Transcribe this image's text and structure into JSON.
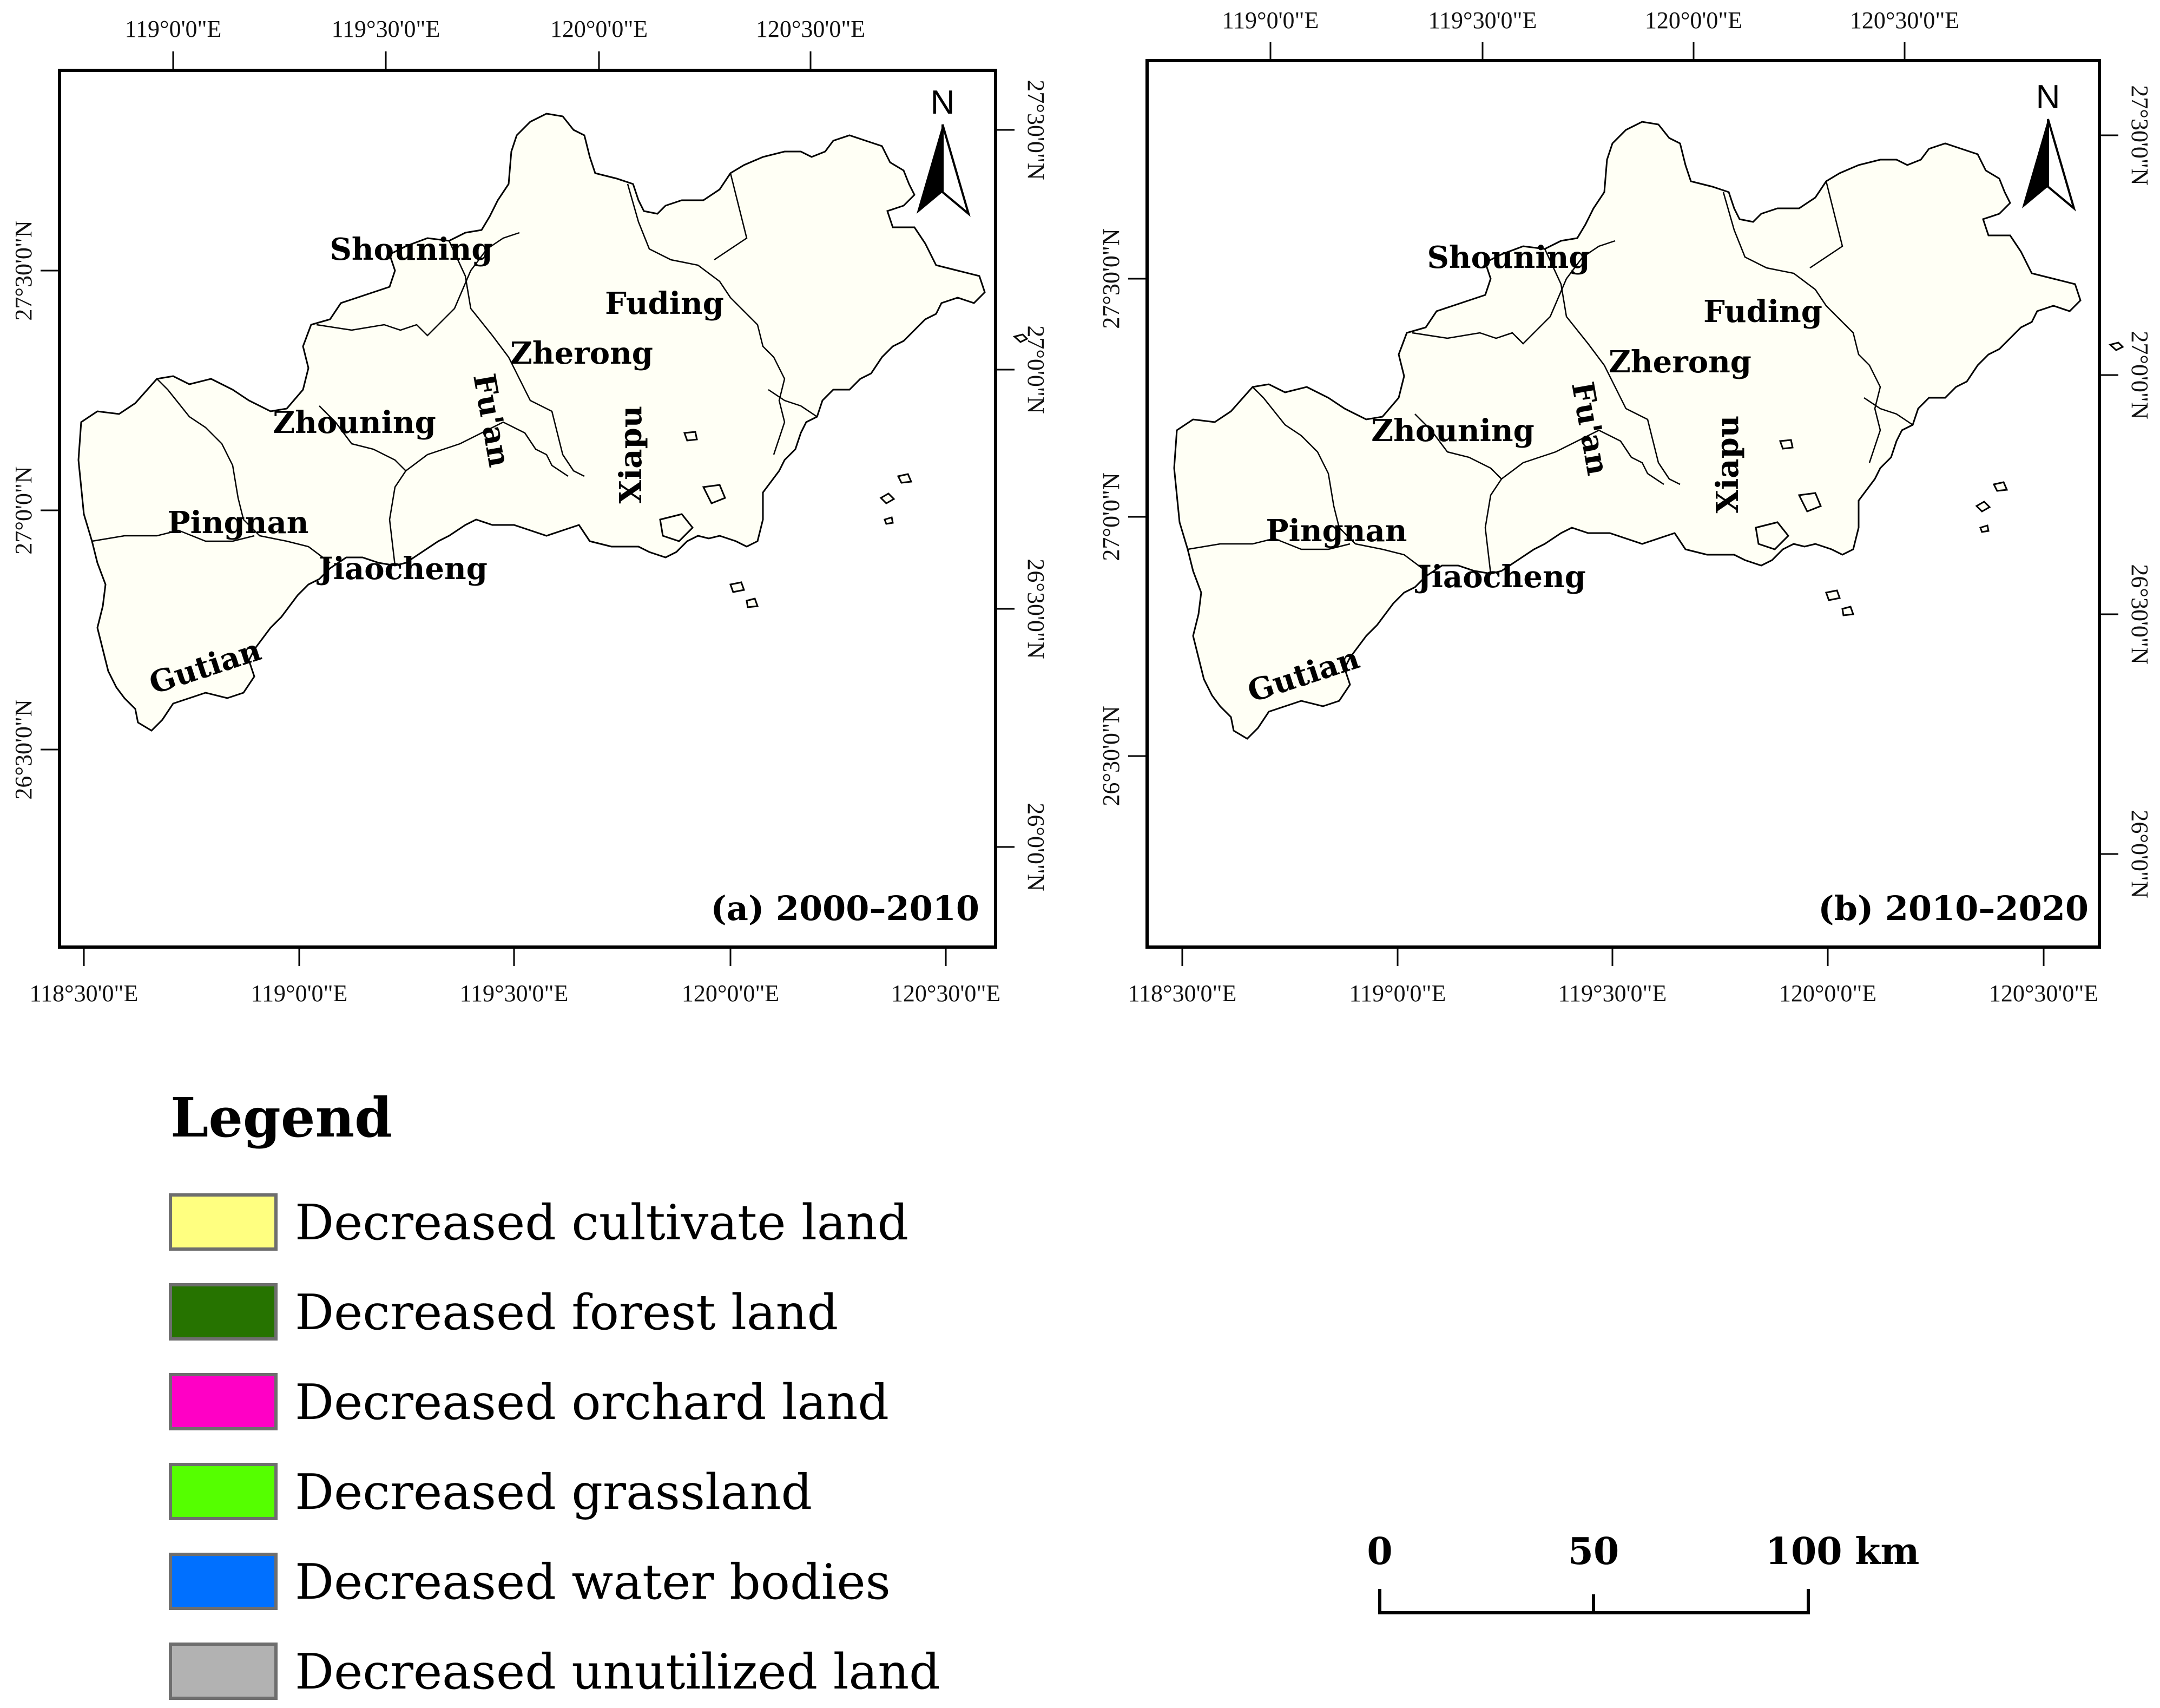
{
  "panels": [
    {
      "label": "(a) 2000–2010",
      "top_ticks": [
        "119°0'0\"E",
        "119°30'0\"E",
        "120°0'0\"E",
        "120°30'0\"E"
      ],
      "bottom_ticks": [
        "118°30'0\"E",
        "119°0'0\"E",
        "119°30'0\"E",
        "120°0'0\"E",
        "120°30'0\"E"
      ],
      "left_ticks": [
        "27°30'0\"N",
        "27°0'0\"N",
        "26°30'0\"N"
      ],
      "right_ticks": [
        "27°30'0\"N",
        "27°0'0\"N",
        "26°30'0\"N",
        "26°0'0\"N"
      ]
    },
    {
      "label": "(b) 2010–2020",
      "top_ticks": [
        "119°0'0\"E",
        "119°30'0\"E",
        "120°0'0\"E",
        "120°30'0\"E"
      ],
      "bottom_ticks": [
        "118°30'0\"E",
        "119°0'0\"E",
        "119°30'0\"E",
        "120°0'0\"E",
        "120°30'0\"E"
      ],
      "left_ticks": [
        "27°30'0\"N",
        "27°0'0\"N",
        "26°30'0\"N"
      ],
      "right_ticks": [
        "27°30'0\"N",
        "27°0'0\"N",
        "26°30'0\"N",
        "26°0'0\"N"
      ]
    }
  ],
  "counties": [
    "Shouning",
    "Fuding",
    "Zherong",
    "Zhouning",
    "Fu'an",
    "Xiapu",
    "Pingnan",
    "Jiaocheng",
    "Gutian"
  ],
  "north_label": "N",
  "legend": {
    "title": "Legend",
    "items": [
      {
        "label": "Decreased cultivate land",
        "color": "#ffff80"
      },
      {
        "label": "Decreased forest land",
        "color": "#267300"
      },
      {
        "label": "Decreased orchard land",
        "color": "#ff00c5"
      },
      {
        "label": "Decreased grassland",
        "color": "#55ff00"
      },
      {
        "label": "Decreased water bodies",
        "color": "#0070ff"
      },
      {
        "label": "Decreased unutilized land",
        "color": "#b2b2b2"
      }
    ]
  },
  "scale_bar": {
    "labels": [
      "0",
      "50",
      "100 km"
    ]
  }
}
